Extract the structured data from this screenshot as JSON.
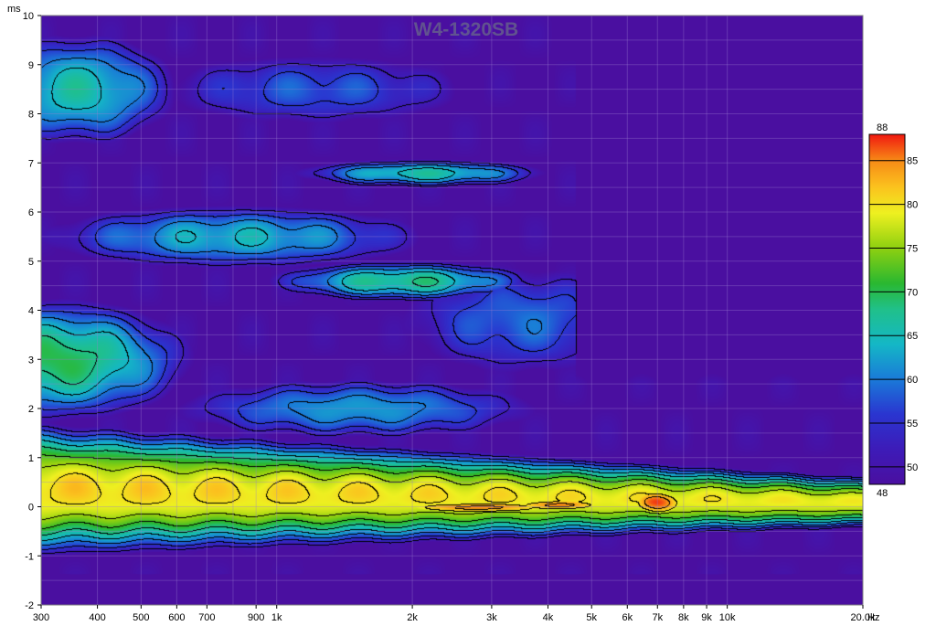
{
  "chart_data": {
    "type": "heatmap",
    "title": "W4-1320SB",
    "y_unit": "ms",
    "x_unit": "Hz",
    "x_scale": "log",
    "xlim": [
      300,
      20000
    ],
    "ylim": [
      -2,
      10
    ],
    "x_tick_labels": [
      {
        "v": 300,
        "t": "300"
      },
      {
        "v": 400,
        "t": "400"
      },
      {
        "v": 500,
        "t": "500"
      },
      {
        "v": 600,
        "t": "600"
      },
      {
        "v": 700,
        "t": "700"
      },
      {
        "v": 900,
        "t": "900"
      },
      {
        "v": 1000,
        "t": "1k"
      },
      {
        "v": 2000,
        "t": "2k"
      },
      {
        "v": 3000,
        "t": "3k"
      },
      {
        "v": 4000,
        "t": "4k"
      },
      {
        "v": 5000,
        "t": "5k"
      },
      {
        "v": 6000,
        "t": "6k"
      },
      {
        "v": 7000,
        "t": "7k"
      },
      {
        "v": 8000,
        "t": "8k"
      },
      {
        "v": 9000,
        "t": "9k"
      },
      {
        "v": 10000,
        "t": "10k"
      },
      {
        "v": 20000,
        "t": "20.0k"
      }
    ],
    "y_ticks": [
      -2,
      -1,
      0,
      1,
      2,
      3,
      4,
      5,
      6,
      7,
      8,
      9,
      10
    ],
    "grid": true,
    "colorbar": {
      "min": 48,
      "max": 88,
      "ticks": [
        50,
        55,
        60,
        65,
        70,
        75,
        80,
        85
      ],
      "min_label": "48",
      "max_label": "88",
      "stops": [
        {
          "v": 48,
          "color": "#4a0fa0"
        },
        {
          "v": 52,
          "color": "#3d1bb8"
        },
        {
          "v": 56,
          "color": "#2a35d0"
        },
        {
          "v": 60,
          "color": "#1a7ad8"
        },
        {
          "v": 64,
          "color": "#14b7c6"
        },
        {
          "v": 68,
          "color": "#20c08a"
        },
        {
          "v": 71,
          "color": "#2ab830"
        },
        {
          "v": 75,
          "color": "#8ed010"
        },
        {
          "v": 79,
          "color": "#eef020"
        },
        {
          "v": 82,
          "color": "#fbc21e"
        },
        {
          "v": 85,
          "color": "#f78a16"
        },
        {
          "v": 88,
          "color": "#f01810"
        }
      ]
    },
    "floor_level": 48,
    "blobs": [
      {
        "f": 2800,
        "t": 0.0,
        "sf": 0.2,
        "st": 0.12,
        "a": 85
      },
      {
        "f": 4200,
        "t": 0.05,
        "sf": 0.12,
        "st": 0.12,
        "a": 85
      },
      {
        "f": 7000,
        "t": 0.1,
        "sf": 0.06,
        "st": 0.25,
        "a": 87
      },
      {
        "f": 1700,
        "t": 0.3,
        "sf": 0.7,
        "st": 0.35,
        "a": 80
      },
      {
        "f": 500,
        "t": 0.3,
        "sf": 0.6,
        "st": 0.6,
        "a": 78
      },
      {
        "f": 320,
        "t": 3.0,
        "sf": 0.25,
        "st": 1.0,
        "a": 70
      },
      {
        "f": 1900,
        "t": 4.6,
        "sf": 0.25,
        "st": 0.35,
        "a": 68
      },
      {
        "f": 2100,
        "t": 6.8,
        "sf": 0.25,
        "st": 0.25,
        "a": 66
      },
      {
        "f": 360,
        "t": 8.5,
        "sf": 0.2,
        "st": 1.0,
        "a": 66
      },
      {
        "f": 800,
        "t": 5.5,
        "sf": 0.4,
        "st": 0.6,
        "a": 64
      },
      {
        "f": 1500,
        "t": 2.0,
        "sf": 0.4,
        "st": 0.6,
        "a": 62
      },
      {
        "f": 3500,
        "t": 3.8,
        "sf": 0.3,
        "st": 1.2,
        "a": 59
      },
      {
        "f": 1200,
        "t": 8.5,
        "sf": 0.4,
        "st": 0.8,
        "a": 58
      }
    ],
    "contour_levels": [
      52,
      56,
      60,
      64,
      68,
      72,
      76,
      80,
      84
    ]
  }
}
